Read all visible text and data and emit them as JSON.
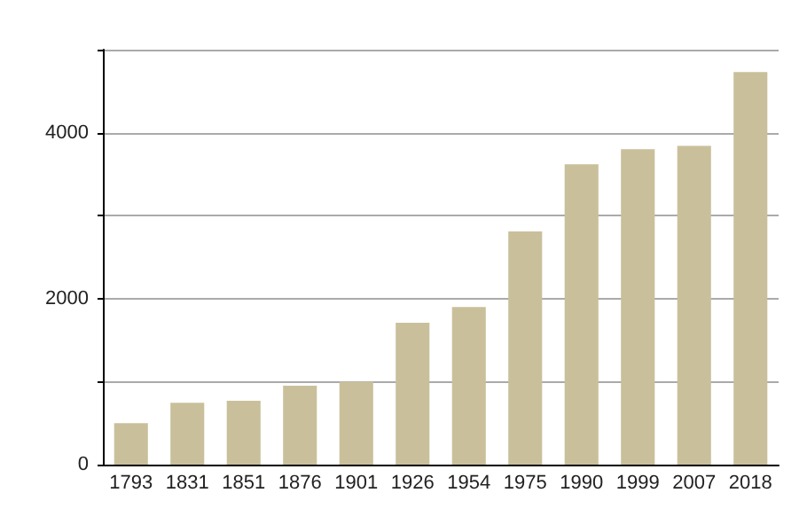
{
  "chart_data": {
    "type": "bar",
    "categories": [
      "1793",
      "1831",
      "1851",
      "1876",
      "1901",
      "1926",
      "1954",
      "1975",
      "1990",
      "1999",
      "2007",
      "2018"
    ],
    "values": [
      500,
      745,
      770,
      950,
      1000,
      1710,
      1900,
      2810,
      3620,
      3800,
      3840,
      4730
    ],
    "color": "#c9c09b",
    "ylim": [
      0,
      5000
    ],
    "yticks": [
      0,
      {
        "value": 1000,
        "label": null
      },
      2000,
      {
        "value": 3000,
        "label": null
      },
      4000,
      {
        "value": 5000,
        "label": null
      }
    ],
    "grid": "y"
  }
}
